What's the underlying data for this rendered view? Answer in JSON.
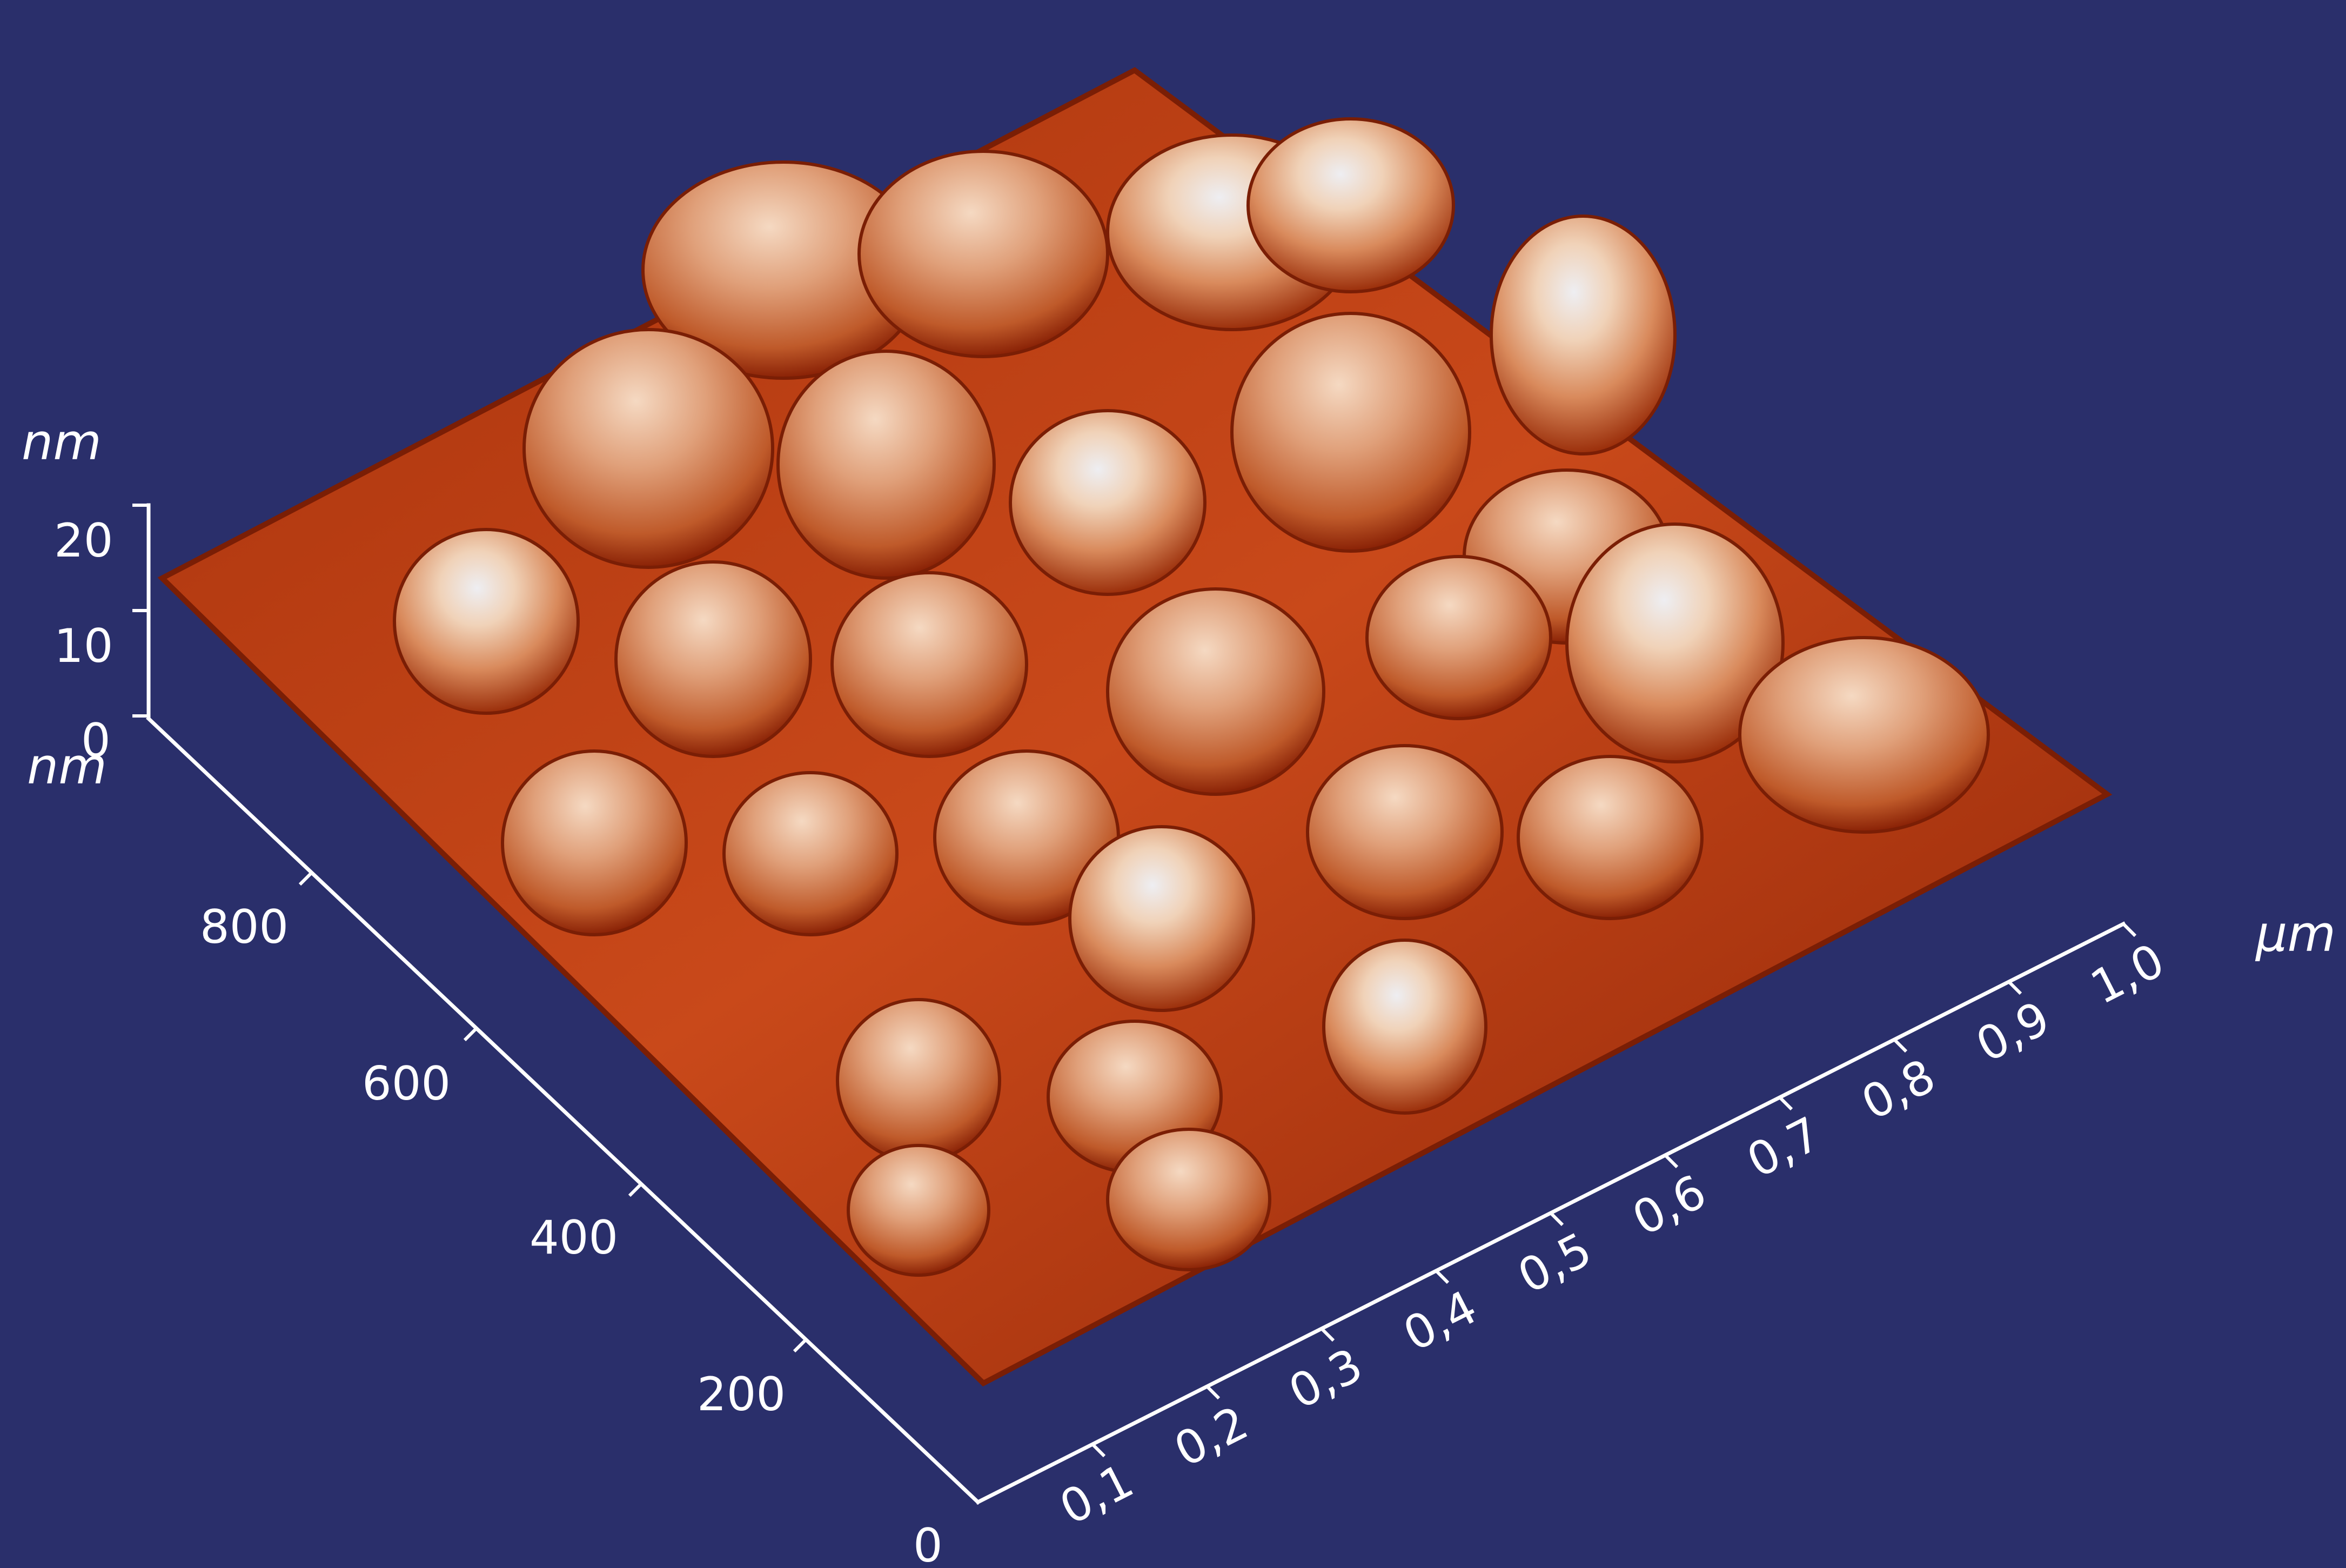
{
  "chart_data": {
    "type": "surface3d",
    "description_units": {
      "z_unit": "nm",
      "y_unit": "nm",
      "x_unit": "µm"
    },
    "z_axis": {
      "unit": "nm",
      "ticks": [
        "0",
        "10",
        "20"
      ],
      "range": [
        0,
        20
      ]
    },
    "y_axis": {
      "unit": "nm",
      "ticks": [
        "0",
        "200",
        "400",
        "600",
        "800"
      ],
      "range": [
        0,
        1000
      ]
    },
    "x_axis": {
      "unit": "µm",
      "ticks": [
        "0,1",
        "0,2",
        "0,3",
        "0,4",
        "0,5",
        "0,6",
        "0,7",
        "0,8",
        "0,9",
        "1,0"
      ],
      "range": [
        0,
        1.0
      ]
    }
  },
  "colors": {
    "background": "#2a2f6b",
    "surface_low": "#8a1e05",
    "surface_mid": "#d0561f",
    "surface_high": "#f0d2b8",
    "surface_peak": "#eeeef2",
    "axis": "#ffffff"
  }
}
